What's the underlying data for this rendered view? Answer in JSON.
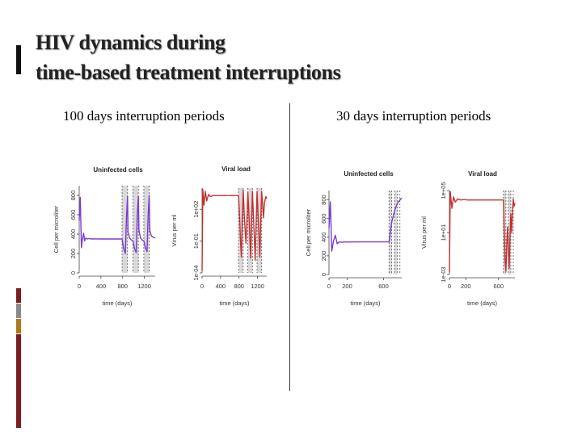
{
  "slide": {
    "title_line1": "HIV dynamics during",
    "title_line2": "time-based treatment interruptions",
    "left_heading": "100 days interruption periods",
    "right_heading": "30 days interruption periods",
    "accent_color": "#111111",
    "strip_colors": [
      "#7b1f1f",
      "#8a8a8a",
      "#b07a1a",
      "#7b1f1f"
    ]
  },
  "chart_data": [
    {
      "panel": "100 days interruption periods",
      "type": "line",
      "title": "Uninfected cells",
      "xlabel": "time (days)",
      "ylabel": "Cell per microliter",
      "xlim": [
        0,
        1400
      ],
      "ylim": [
        0,
        900
      ],
      "x_ticks": [
        "0",
        "400",
        "800",
        "1200"
      ],
      "y_ticks": [
        "0",
        "200",
        "400",
        "600",
        "800"
      ],
      "line_color": "#7a3bd1",
      "interruptions": [
        [
          790,
          890
        ],
        [
          990,
          1090
        ],
        [
          1190,
          1290
        ]
      ],
      "dashed_lines": [
        790,
        890,
        990,
        1090,
        1190,
        1290
      ],
      "x": [
        0,
        20,
        40,
        60,
        80,
        100,
        120,
        150,
        180,
        220,
        260,
        300,
        400,
        500,
        600,
        700,
        790,
        820,
        850,
        870,
        890,
        900,
        930,
        960,
        990,
        1020,
        1050,
        1070,
        1090,
        1100,
        1130,
        1160,
        1190,
        1220,
        1250,
        1270,
        1290,
        1300,
        1330,
        1360,
        1400
      ],
      "series": [
        {
          "name": "Uninfected cells",
          "values": [
            540,
            780,
            260,
            350,
            410,
            330,
            360,
            350,
            355,
            350,
            352,
            351,
            350,
            350,
            350,
            350,
            350,
            250,
            200,
            560,
            790,
            420,
            360,
            340,
            330,
            250,
            210,
            600,
            790,
            440,
            360,
            340,
            330,
            260,
            220,
            600,
            800,
            440,
            380,
            370,
            360
          ]
        }
      ]
    },
    {
      "panel": "100 days interruption periods",
      "type": "line",
      "title": "Viral load",
      "xlabel": "time (days)",
      "ylabel": "Virus per ml",
      "xlim": [
        0,
        1400
      ],
      "ylim": [
        -4,
        4
      ],
      "y_scale": "log10",
      "x_ticks": [
        "0",
        "400",
        "800",
        "1200"
      ],
      "y_ticks": [
        "1e-04",
        "1e-01",
        "1e+02"
      ],
      "line_color": "#c43030",
      "interruptions": [
        [
          790,
          890
        ],
        [
          990,
          1090
        ],
        [
          1190,
          1290
        ]
      ],
      "dashed_lines": [
        790,
        890,
        990,
        1090,
        1190,
        1290
      ],
      "x": [
        0,
        15,
        40,
        70,
        100,
        140,
        180,
        240,
        300,
        400,
        500,
        600,
        700,
        790,
        810,
        830,
        850,
        870,
        890,
        910,
        930,
        950,
        970,
        990,
        1010,
        1030,
        1050,
        1070,
        1090,
        1110,
        1130,
        1150,
        1170,
        1190,
        1210,
        1230,
        1250,
        1270,
        1290,
        1310,
        1330,
        1350,
        1380,
        1400
      ],
      "series": [
        {
          "name": "Viral load",
          "values": [
            -3.8,
            3.9,
            2.4,
            3.7,
            2.8,
            3.4,
            3.2,
            3.3,
            3.3,
            3.3,
            3.3,
            3.3,
            3.3,
            3.3,
            1.5,
            -0.8,
            -2.5,
            1.0,
            3.8,
            1.8,
            0.2,
            -1.2,
            0.8,
            3.6,
            2.0,
            -0.2,
            -2.6,
            0.6,
            3.7,
            1.6,
            -0.6,
            -2.8,
            0.8,
            3.7,
            1.8,
            -0.4,
            -2.5,
            0.9,
            3.7,
            2.4,
            1.2,
            2.6,
            3.2,
            3.0
          ]
        }
      ]
    },
    {
      "panel": "30 days interruption periods",
      "type": "line",
      "title": "Uninfected cells",
      "xlabel": "time (days)",
      "ylabel": "Cell per microliter",
      "xlim": [
        0,
        800
      ],
      "ylim": [
        0,
        900
      ],
      "x_ticks": [
        "0",
        "200",
        "600"
      ],
      "y_ticks": [
        "0",
        "200",
        "400",
        "600",
        "800"
      ],
      "line_color": "#7a3bd1",
      "interruptions": [
        [
          660,
          690
        ],
        [
          720,
          750
        ]
      ],
      "dashed_lines": [
        660,
        690,
        720,
        750,
        780
      ],
      "x": [
        0,
        15,
        30,
        50,
        70,
        90,
        110,
        140,
        170,
        200,
        300,
        400,
        500,
        600,
        660,
        690,
        720,
        750,
        780,
        800
      ],
      "series": [
        {
          "name": "Uninfected cells",
          "values": [
            500,
            780,
            250,
            360,
            420,
            330,
            350,
            345,
            350,
            348,
            350,
            350,
            350,
            350,
            350,
            560,
            680,
            760,
            800,
            820
          ]
        }
      ]
    },
    {
      "panel": "30 days interruption periods",
      "type": "line",
      "title": "Viral load",
      "xlabel": "time (days)",
      "ylabel": "Virus per ml",
      "xlim": [
        0,
        800
      ],
      "ylim": [
        -3,
        5
      ],
      "y_scale": "log10",
      "x_ticks": [
        "0",
        "200",
        "600"
      ],
      "y_ticks": [
        "1e-03",
        "1e+01",
        "1e+05"
      ],
      "line_color": "#c43030",
      "interruptions": [
        [
          660,
          690
        ],
        [
          720,
          750
        ]
      ],
      "dashed_lines": [
        660,
        690,
        720,
        750,
        780
      ],
      "x": [
        0,
        10,
        30,
        50,
        70,
        100,
        140,
        180,
        220,
        300,
        400,
        500,
        600,
        660,
        670,
        680,
        690,
        700,
        710,
        720,
        730,
        740,
        750,
        760,
        770,
        780,
        790,
        800
      ],
      "series": [
        {
          "name": "Viral load",
          "values": [
            -2.8,
            4.9,
            3.3,
            4.4,
            3.9,
            4.2,
            4.1,
            4.15,
            4.1,
            4.1,
            4.1,
            4.1,
            4.1,
            4.1,
            1.0,
            -1.8,
            -2.7,
            -0.2,
            1.5,
            -1.0,
            -2.4,
            0.5,
            2.8,
            1.0,
            3.2,
            4.2,
            3.5,
            3.8
          ]
        }
      ]
    }
  ]
}
